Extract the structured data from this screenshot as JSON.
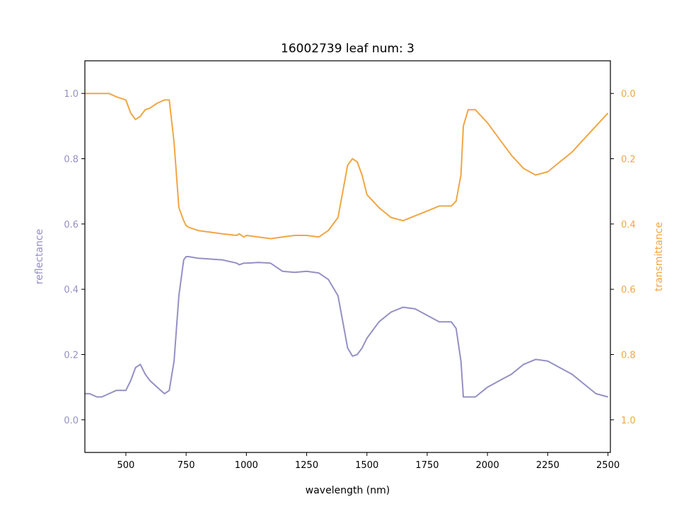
{
  "chart_data": {
    "type": "line",
    "title": "16002739 leaf num: 3",
    "xlabel": "wavelength (nm)",
    "ylabel_left": "reflectance",
    "ylabel_right": "transmittance",
    "xlim": [
      330,
      2510
    ],
    "ylim_left": [
      -0.1,
      1.1
    ],
    "ylim_right": [
      1.1,
      -0.1
    ],
    "right_axis_inverted": true,
    "grid": false,
    "xticks": [
      500,
      750,
      1000,
      1250,
      1500,
      1750,
      2000,
      2250,
      2500
    ],
    "yticks_left": [
      0.0,
      0.2,
      0.4,
      0.6,
      0.8,
      1.0
    ],
    "yticks_right": [
      0.0,
      0.2,
      0.4,
      0.6,
      0.8,
      1.0
    ],
    "xtick_labels": [
      "500",
      "750",
      "1000",
      "1250",
      "1500",
      "1750",
      "2000",
      "2250",
      "2500"
    ],
    "ytick_labels_left": [
      "0.0",
      "0.2",
      "0.4",
      "0.6",
      "0.8",
      "1.0"
    ],
    "ytick_labels_right": [
      "0.0",
      "0.2",
      "0.4",
      "0.6",
      "0.8",
      "1.0"
    ],
    "colors": {
      "reflectance": "#9590c4",
      "transmittance": "#f0a645"
    },
    "series": [
      {
        "axis": "left",
        "x": [
          330,
          350,
          380,
          400,
          430,
          460,
          500,
          520,
          540,
          560,
          580,
          600,
          630,
          660,
          680,
          700,
          720,
          740,
          750,
          760,
          800,
          900,
          960,
          970,
          990,
          1000,
          1050,
          1100,
          1150,
          1200,
          1250,
          1300,
          1340,
          1380,
          1400,
          1420,
          1440,
          1460,
          1480,
          1500,
          1550,
          1600,
          1650,
          1700,
          1750,
          1800,
          1850,
          1870,
          1890,
          1900,
          1920,
          1950,
          2000,
          2050,
          2100,
          2150,
          2200,
          2250,
          2300,
          2350,
          2400,
          2450,
          2500
        ],
        "y": [
          0.08,
          0.08,
          0.07,
          0.07,
          0.08,
          0.09,
          0.09,
          0.12,
          0.16,
          0.17,
          0.14,
          0.12,
          0.1,
          0.08,
          0.09,
          0.18,
          0.38,
          0.49,
          0.5,
          0.5,
          0.495,
          0.49,
          0.48,
          0.475,
          0.48,
          0.48,
          0.482,
          0.48,
          0.455,
          0.452,
          0.455,
          0.45,
          0.43,
          0.38,
          0.3,
          0.22,
          0.195,
          0.2,
          0.22,
          0.25,
          0.3,
          0.33,
          0.345,
          0.34,
          0.32,
          0.3,
          0.3,
          0.28,
          0.18,
          0.07,
          0.07,
          0.07,
          0.1,
          0.12,
          0.14,
          0.17,
          0.185,
          0.18,
          0.16,
          0.14,
          0.11,
          0.08,
          0.07
        ]
      },
      {
        "axis": "right",
        "x": [
          330,
          350,
          380,
          400,
          430,
          460,
          500,
          520,
          540,
          560,
          580,
          600,
          630,
          660,
          680,
          700,
          720,
          740,
          750,
          760,
          800,
          900,
          960,
          970,
          990,
          1000,
          1050,
          1100,
          1150,
          1200,
          1250,
          1300,
          1340,
          1380,
          1400,
          1420,
          1440,
          1460,
          1480,
          1500,
          1550,
          1600,
          1650,
          1700,
          1750,
          1800,
          1850,
          1870,
          1890,
          1900,
          1920,
          1950,
          2000,
          2050,
          2100,
          2150,
          2200,
          2250,
          2300,
          2350,
          2400,
          2450,
          2500
        ],
        "y": [
          0.0,
          0.0,
          0.0,
          0.0,
          0.0,
          0.01,
          0.02,
          0.06,
          0.08,
          0.07,
          0.05,
          0.045,
          0.03,
          0.02,
          0.02,
          0.15,
          0.35,
          0.39,
          0.405,
          0.41,
          0.42,
          0.43,
          0.435,
          0.43,
          0.44,
          0.435,
          0.44,
          0.445,
          0.44,
          0.435,
          0.435,
          0.44,
          0.42,
          0.38,
          0.3,
          0.22,
          0.2,
          0.21,
          0.25,
          0.31,
          0.35,
          0.38,
          0.39,
          0.375,
          0.36,
          0.345,
          0.345,
          0.33,
          0.25,
          0.1,
          0.05,
          0.05,
          0.09,
          0.14,
          0.19,
          0.23,
          0.25,
          0.24,
          0.21,
          0.18,
          0.14,
          0.1,
          0.06
        ]
      }
    ]
  }
}
